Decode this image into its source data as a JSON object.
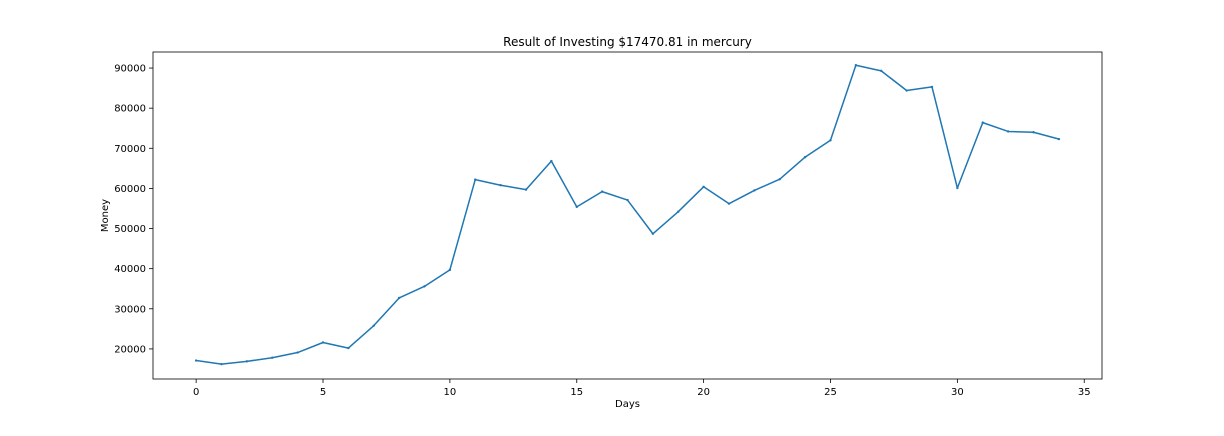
{
  "chart_data": {
    "type": "line",
    "title": "Result of Investing $17470.81 in mercury",
    "xlabel": "Days",
    "ylabel": "Money",
    "xlim": [
      -1.7,
      35.7
    ],
    "ylim": [
      12500,
      94000
    ],
    "x_ticks": [
      0,
      5,
      10,
      15,
      20,
      25,
      30,
      35
    ],
    "y_ticks": [
      20000,
      30000,
      40000,
      50000,
      60000,
      70000,
      80000,
      90000
    ],
    "grid": false,
    "legend": "none",
    "colors": {
      "line": "#1f77b4",
      "axes": "#000000",
      "background": "#ffffff"
    },
    "series": [
      {
        "x": [
          0,
          1,
          2,
          3,
          4,
          5,
          6,
          7,
          8,
          9,
          10,
          11,
          12,
          13,
          14,
          15,
          16,
          17,
          18,
          19,
          20,
          21,
          22,
          23,
          24,
          25,
          26,
          27,
          28,
          29,
          30,
          31,
          32,
          33,
          34
        ],
        "values": [
          17100,
          16200,
          16900,
          17800,
          19100,
          21600,
          20200,
          25800,
          32700,
          35600,
          39700,
          62200,
          60800,
          59700,
          66800,
          55400,
          59200,
          57100,
          48700,
          54200,
          60400,
          56200,
          59500,
          62300,
          67800,
          72000,
          90700,
          89300,
          84400,
          85300,
          60100,
          76400,
          74200,
          74000,
          72300
        ]
      }
    ]
  }
}
